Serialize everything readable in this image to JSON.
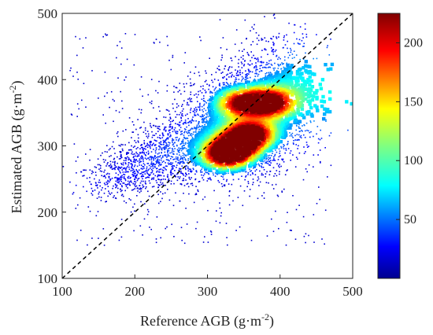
{
  "chart_data": {
    "type": "heatmap",
    "subtype": "density-scatter",
    "xlabel": "Reference AGB (g·m",
    "xlabel_sup": "-2",
    "xlabel_close": ")",
    "ylabel": "Estimated AGB (g·m",
    "ylabel_sup": "-2",
    "ylabel_close": ")",
    "xlim": [
      100,
      500
    ],
    "ylim": [
      100,
      500
    ],
    "xticks": [
      "100",
      "200",
      "300",
      "400",
      "500"
    ],
    "yticks": [
      "100",
      "200",
      "300",
      "400",
      "500"
    ],
    "reference_line": {
      "from": [
        100,
        100
      ],
      "to": [
        500,
        500
      ],
      "style": "dashed",
      "color": "#000000"
    },
    "grid": false,
    "colorbar": {
      "position": "right",
      "range": [
        0,
        225
      ],
      "ticks": [
        "50",
        "100",
        "150",
        "200"
      ],
      "colormap": "jet"
    },
    "density_clusters": [
      {
        "x": 325,
        "y": 285,
        "peak": 220
      },
      {
        "x": 360,
        "y": 318,
        "peak": 215
      },
      {
        "x": 385,
        "y": 365,
        "peak": 200
      },
      {
        "x": 345,
        "y": 365,
        "peak": 170
      },
      {
        "x": 340,
        "y": 300,
        "peak": 190
      }
    ],
    "point_cloud": {
      "x_range": [
        110,
        470
      ],
      "y_range": [
        200,
        470
      ],
      "trend_start": [
        150,
        240
      ],
      "trend_end": [
        420,
        360
      ]
    }
  }
}
